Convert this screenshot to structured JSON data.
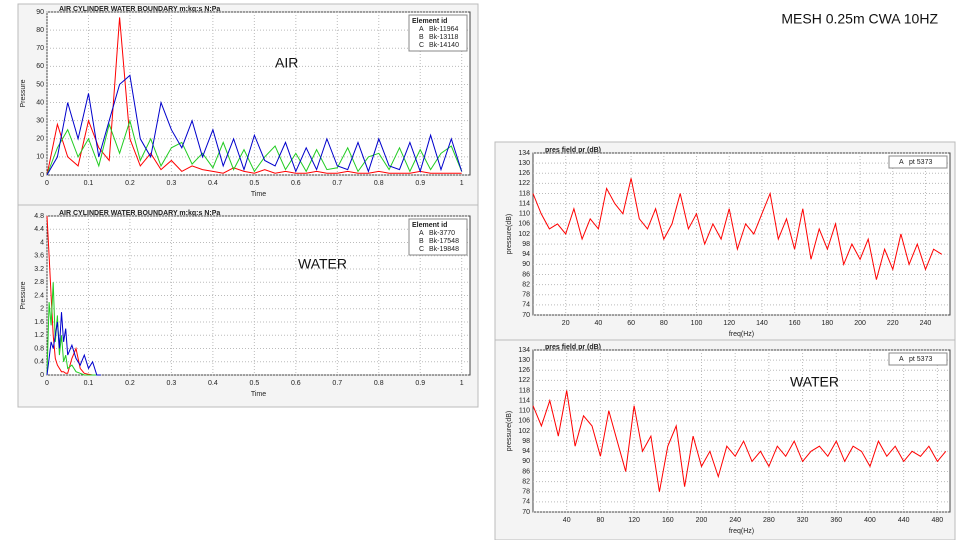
{
  "title": "MESH 0.25m CWA 10HZ",
  "chart_data": [
    {
      "type": "line",
      "title": "AIR CYLINDER WATER BOUNDARY m:kg:s N:Pa",
      "annotation": "AIR",
      "xlabel": "Time",
      "ylabel": "Pressure",
      "legend_title": "Element id",
      "legend": "upper right",
      "grid": true,
      "x": [
        0,
        0.025,
        0.05,
        0.075,
        0.1,
        0.125,
        0.15,
        0.175,
        0.2,
        0.225,
        0.25,
        0.275,
        0.3,
        0.325,
        0.35,
        0.375,
        0.4,
        0.425,
        0.45,
        0.475,
        0.5,
        0.525,
        0.55,
        0.575,
        0.6,
        0.625,
        0.65,
        0.675,
        0.7,
        0.725,
        0.75,
        0.775,
        0.8,
        0.825,
        0.85,
        0.875,
        0.9,
        0.925,
        0.95,
        0.975,
        1
      ],
      "xlim": [
        0,
        1.02
      ],
      "xticks": [
        0,
        0.1,
        0.2,
        0.3,
        0.4,
        0.5,
        0.6,
        0.7,
        0.8,
        0.9,
        1
      ],
      "ylim": [
        0,
        90
      ],
      "yticks": [
        0,
        10,
        20,
        30,
        40,
        50,
        60,
        70,
        80,
        90
      ],
      "series": [
        {
          "label": "A",
          "name": "Bk-11964",
          "color": "#ff0000",
          "values": [
            0,
            28,
            10,
            5,
            30,
            15,
            8,
            87,
            20,
            5,
            12,
            3,
            8,
            2,
            5,
            3,
            2,
            1,
            4,
            2,
            1,
            3,
            1,
            2,
            1,
            1,
            2,
            1,
            1,
            2,
            1,
            1,
            2,
            1,
            1,
            1,
            2,
            1,
            1,
            1,
            1
          ]
        },
        {
          "label": "B",
          "name": "Bk-13118",
          "color": "#22cc22",
          "values": [
            0,
            15,
            25,
            10,
            20,
            5,
            28,
            12,
            30,
            8,
            20,
            5,
            15,
            18,
            6,
            12,
            4,
            18,
            3,
            14,
            2,
            10,
            16,
            3,
            12,
            2,
            14,
            3,
            4,
            15,
            2,
            10,
            12,
            3,
            15,
            2,
            14,
            3,
            12,
            16,
            2
          ]
        },
        {
          "label": "C",
          "name": "Bk-14140",
          "color": "#0000cc",
          "values": [
            0,
            10,
            40,
            20,
            45,
            10,
            30,
            50,
            55,
            20,
            10,
            40,
            25,
            15,
            30,
            10,
            25,
            5,
            20,
            3,
            22,
            8,
            5,
            18,
            2,
            15,
            3,
            20,
            5,
            3,
            18,
            2,
            20,
            5,
            3,
            18,
            2,
            22,
            3,
            20,
            2
          ]
        }
      ]
    },
    {
      "type": "line",
      "title": "AIR CYLINDER WATER BOUNDARY m:kg:s N:Pa",
      "annotation": "WATER",
      "xlabel": "Time",
      "ylabel": "Pressure",
      "legend_title": "Element id",
      "legend": "upper right",
      "grid": true,
      "x": [
        0,
        0.005,
        0.01,
        0.015,
        0.02,
        0.025,
        0.03,
        0.035,
        0.04,
        0.045,
        0.05,
        0.06,
        0.07,
        0.08,
        0.09,
        0.1,
        0.11,
        0.12,
        0.13
      ],
      "xlim": [
        0,
        1.02
      ],
      "xticks": [
        0,
        0.1,
        0.2,
        0.3,
        0.4,
        0.5,
        0.6,
        0.7,
        0.8,
        0.9,
        1
      ],
      "ylim": [
        0,
        4.8
      ],
      "yticks": [
        0,
        0.4,
        0.8,
        1.2,
        1.6,
        2,
        2.4,
        2.8,
        3.2,
        3.6,
        4,
        4.4,
        4.8
      ],
      "series": [
        {
          "label": "A",
          "name": "Bk-3770",
          "color": "#ff0000",
          "values": [
            4.8,
            3.6,
            2.4,
            1.2,
            0.5,
            0.3,
            0.2,
            0.1,
            0.1,
            0.05,
            0.05,
            0.5,
            0.8,
            0.2,
            0.05,
            0.02,
            0,
            0,
            0
          ]
        },
        {
          "label": "B",
          "name": "Bk-17548",
          "color": "#22cc22",
          "values": [
            0,
            2.2,
            1.5,
            2.8,
            1.0,
            1.8,
            0.6,
            1.2,
            0.4,
            0.6,
            0.2,
            0.3,
            0.1,
            0.05,
            0,
            0,
            0,
            0,
            0
          ]
        },
        {
          "label": "C",
          "name": "Bk-19848",
          "color": "#0000cc",
          "values": [
            0,
            0.5,
            1.0,
            0.8,
            1.2,
            1.6,
            0.8,
            1.9,
            1.0,
            1.4,
            0.6,
            0.9,
            0.5,
            0.3,
            0.6,
            0.2,
            0.4,
            0,
            0
          ]
        }
      ]
    },
    {
      "type": "line",
      "title": "pres field pr (dB)",
      "xlabel": "freq(Hz)",
      "ylabel": "pressure(dB)",
      "legend": "upper right",
      "grid": true,
      "x": [
        0,
        5,
        10,
        15,
        20,
        25,
        30,
        35,
        40,
        45,
        50,
        55,
        60,
        65,
        70,
        75,
        80,
        85,
        90,
        95,
        100,
        105,
        110,
        115,
        120,
        125,
        130,
        135,
        140,
        145,
        150,
        155,
        160,
        165,
        170,
        175,
        180,
        185,
        190,
        195,
        200,
        205,
        210,
        215,
        220,
        225,
        230,
        235,
        240,
        245,
        250
      ],
      "xlim": [
        0,
        255
      ],
      "xticks": [
        20,
        40,
        60,
        80,
        100,
        120,
        140,
        160,
        180,
        200,
        220,
        240
      ],
      "ylim": [
        70,
        134
      ],
      "yticks": [
        70,
        74,
        78,
        82,
        86,
        90,
        94,
        98,
        102,
        106,
        110,
        114,
        118,
        122,
        126,
        130,
        134
      ],
      "series": [
        {
          "label": "A",
          "name": "pt 5373",
          "color": "#ff0000",
          "values": [
            118,
            110,
            104,
            106,
            102,
            112,
            100,
            108,
            104,
            120,
            114,
            110,
            124,
            108,
            104,
            112,
            100,
            106,
            118,
            104,
            110,
            98,
            106,
            100,
            112,
            96,
            106,
            102,
            110,
            118,
            100,
            108,
            96,
            112,
            92,
            104,
            96,
            106,
            90,
            98,
            92,
            100,
            84,
            96,
            88,
            102,
            90,
            98,
            88,
            96,
            94
          ]
        }
      ]
    },
    {
      "type": "line",
      "title": "pres field pr (dB)",
      "annotation": "WATER",
      "xlabel": "freq(Hz)",
      "ylabel": "pressure(dB)",
      "legend": "upper right",
      "grid": true,
      "x": [
        0,
        10,
        20,
        30,
        40,
        50,
        60,
        70,
        80,
        90,
        100,
        110,
        120,
        130,
        140,
        150,
        160,
        170,
        180,
        190,
        200,
        210,
        220,
        230,
        240,
        250,
        260,
        270,
        280,
        290,
        300,
        310,
        320,
        330,
        340,
        350,
        360,
        370,
        380,
        390,
        400,
        410,
        420,
        430,
        440,
        450,
        460,
        470,
        480,
        490
      ],
      "xlim": [
        0,
        495
      ],
      "xticks": [
        40,
        80,
        120,
        160,
        200,
        240,
        280,
        320,
        360,
        400,
        440,
        480
      ],
      "ylim": [
        70,
        134
      ],
      "yticks": [
        70,
        74,
        78,
        82,
        86,
        90,
        94,
        98,
        102,
        106,
        110,
        114,
        118,
        122,
        126,
        130,
        134
      ],
      "series": [
        {
          "label": "A",
          "name": "pt 5373",
          "color": "#ff0000",
          "values": [
            112,
            104,
            114,
            100,
            118,
            96,
            108,
            104,
            92,
            110,
            98,
            86,
            112,
            94,
            100,
            78,
            96,
            104,
            80,
            100,
            88,
            94,
            84,
            96,
            92,
            98,
            90,
            94,
            88,
            96,
            92,
            98,
            90,
            94,
            96,
            92,
            98,
            90,
            96,
            94,
            88,
            98,
            92,
            96,
            90,
            94,
            92,
            96,
            90,
            94
          ]
        }
      ]
    }
  ]
}
